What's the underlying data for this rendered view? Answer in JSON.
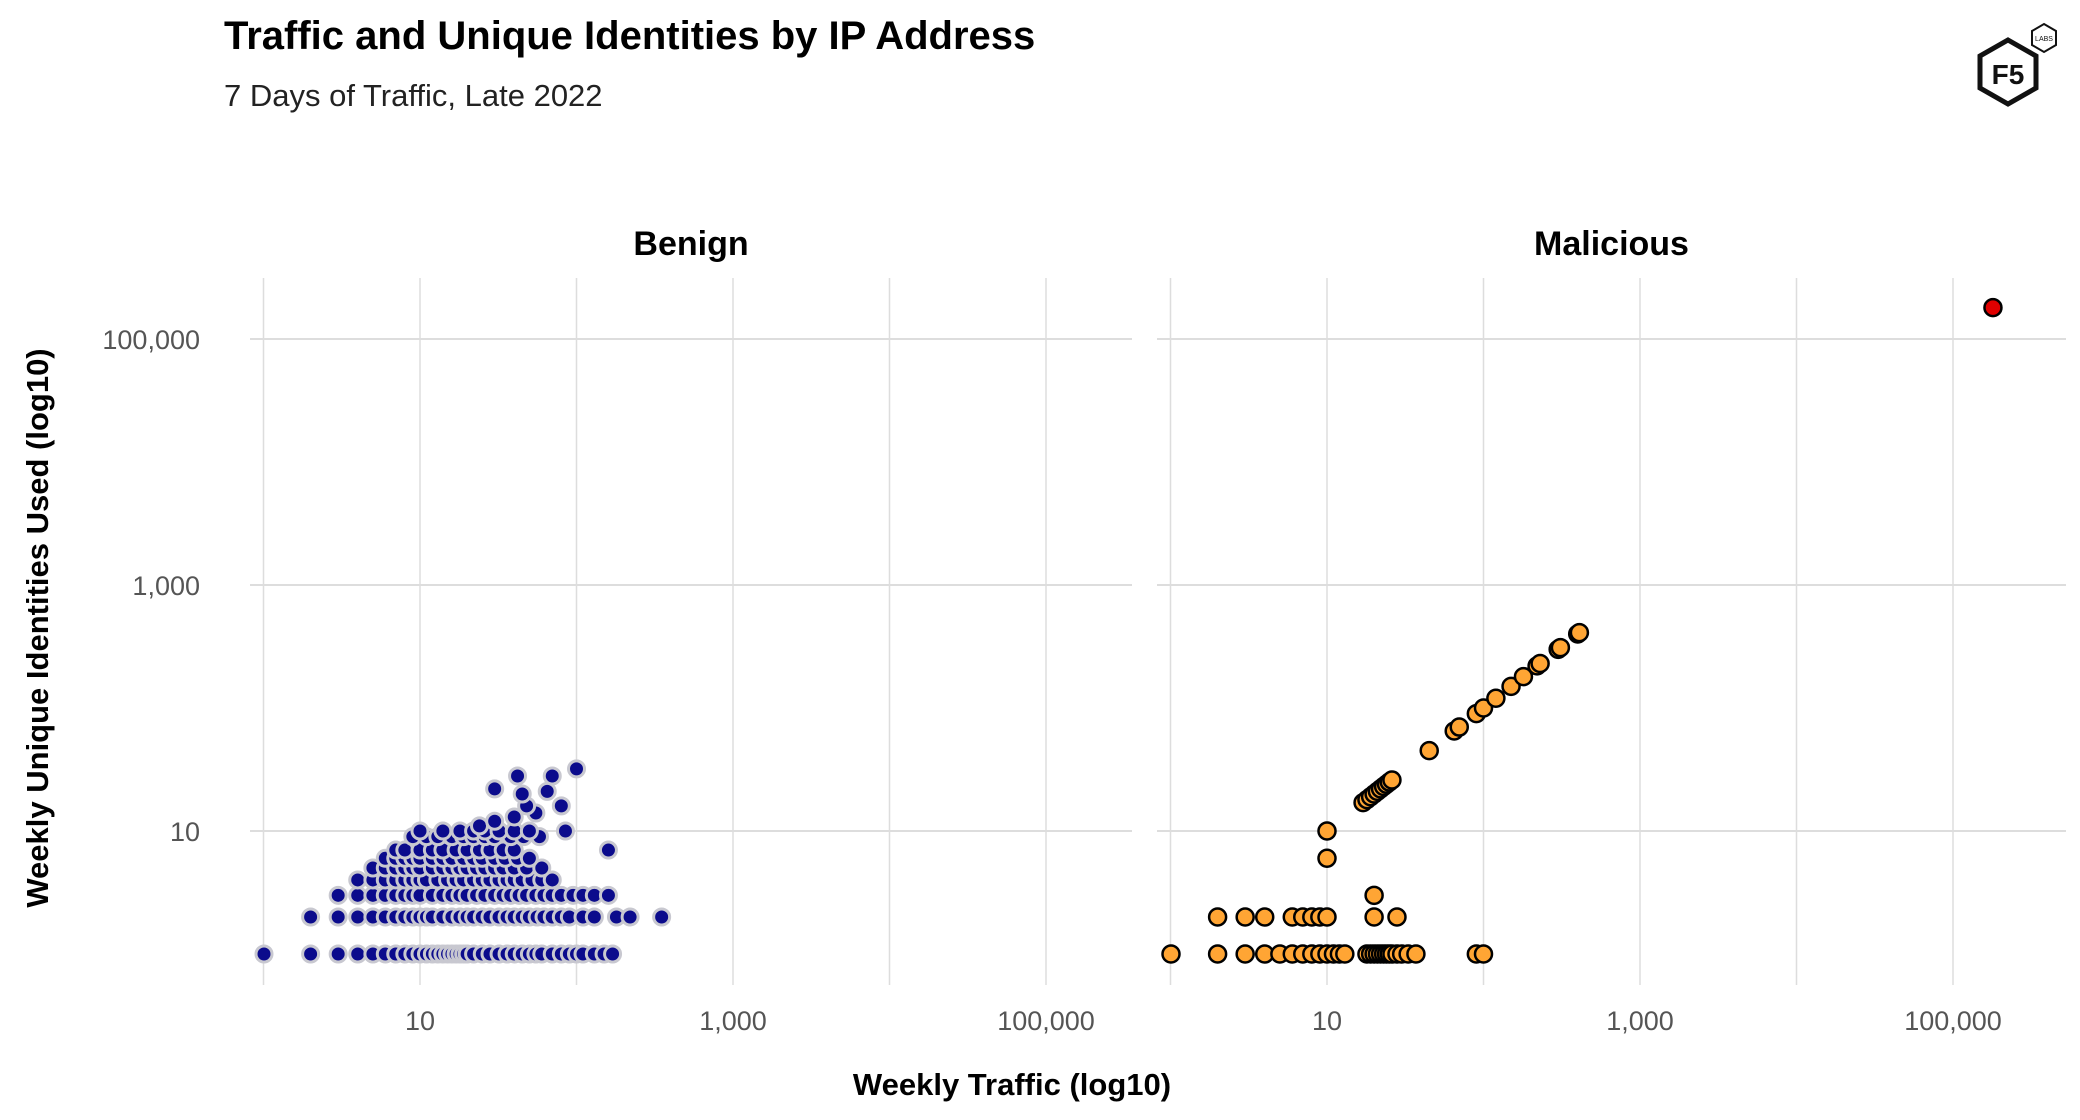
{
  "header": {
    "title": "Traffic and Unique Identities by IP Address",
    "subtitle": "7 Days of Traffic, Late 2022",
    "logo_text": "F5",
    "logo_badge": "LABS"
  },
  "colors": {
    "benign_fill": "#0b0b8c",
    "benign_stroke": "#c8c8d0",
    "malicious_fill": "#ffa534",
    "malicious_stroke": "#000000",
    "outlier_fill": "#e00000",
    "grid": "#dddddd"
  },
  "chart_data": {
    "type": "scatter",
    "xlabel": "Weekly Traffic (log10)",
    "ylabel": "Weekly Unique Identities Used (log10)",
    "x_scale": "log10",
    "y_scale": "log10",
    "xlim": [
      0.6,
      300000
    ],
    "ylim": [
      0.6,
      300000
    ],
    "x_ticks": [
      10,
      1000,
      100000
    ],
    "x_tick_labels": [
      "10",
      "1,000",
      "100,000"
    ],
    "y_ticks": [
      10,
      1000,
      100000
    ],
    "y_tick_labels": [
      "10",
      "1,000",
      "100,000"
    ],
    "grid": true,
    "panels": [
      {
        "name": "Benign",
        "points": [
          [
            1,
            1
          ],
          [
            2,
            1
          ],
          [
            3,
            1
          ],
          [
            4,
            1
          ],
          [
            5,
            1
          ],
          [
            6,
            1
          ],
          [
            7,
            1
          ],
          [
            8,
            1
          ],
          [
            9,
            1
          ],
          [
            10,
            1
          ],
          [
            11,
            1
          ],
          [
            12,
            1
          ],
          [
            13,
            1
          ],
          [
            14,
            1
          ],
          [
            15,
            1
          ],
          [
            16,
            1
          ],
          [
            17,
            1
          ],
          [
            18,
            1
          ],
          [
            19,
            1
          ],
          [
            20,
            1
          ],
          [
            22,
            1
          ],
          [
            25,
            1
          ],
          [
            28,
            1
          ],
          [
            32,
            1
          ],
          [
            36,
            1
          ],
          [
            40,
            1
          ],
          [
            45,
            1
          ],
          [
            50,
            1
          ],
          [
            55,
            1
          ],
          [
            60,
            1
          ],
          [
            70,
            1
          ],
          [
            80,
            1
          ],
          [
            90,
            1
          ],
          [
            100,
            1
          ],
          [
            110,
            1
          ],
          [
            130,
            1
          ],
          [
            150,
            1
          ],
          [
            170,
            1
          ],
          [
            2,
            2
          ],
          [
            3,
            2
          ],
          [
            4,
            2
          ],
          [
            5,
            2
          ],
          [
            6,
            2
          ],
          [
            7,
            2
          ],
          [
            8,
            2
          ],
          [
            9,
            2
          ],
          [
            10,
            2
          ],
          [
            11,
            2
          ],
          [
            12,
            2
          ],
          [
            14,
            2
          ],
          [
            16,
            2
          ],
          [
            18,
            2
          ],
          [
            20,
            2
          ],
          [
            22,
            2
          ],
          [
            25,
            2
          ],
          [
            28,
            2
          ],
          [
            32,
            2
          ],
          [
            36,
            2
          ],
          [
            40,
            2
          ],
          [
            45,
            2
          ],
          [
            50,
            2
          ],
          [
            56,
            2
          ],
          [
            62,
            2
          ],
          [
            70,
            2
          ],
          [
            80,
            2
          ],
          [
            90,
            2
          ],
          [
            110,
            2
          ],
          [
            130,
            2
          ],
          [
            180,
            2
          ],
          [
            220,
            2
          ],
          [
            350,
            2
          ],
          [
            3,
            3
          ],
          [
            4,
            3
          ],
          [
            5,
            3
          ],
          [
            6,
            3
          ],
          [
            7,
            3
          ],
          [
            8,
            3
          ],
          [
            9,
            3
          ],
          [
            10,
            3
          ],
          [
            12,
            3
          ],
          [
            14,
            3
          ],
          [
            16,
            3
          ],
          [
            18,
            3
          ],
          [
            20,
            3
          ],
          [
            23,
            3
          ],
          [
            26,
            3
          ],
          [
            30,
            3
          ],
          [
            34,
            3
          ],
          [
            38,
            3
          ],
          [
            43,
            3
          ],
          [
            48,
            3
          ],
          [
            55,
            3
          ],
          [
            62,
            3
          ],
          [
            70,
            3
          ],
          [
            80,
            3
          ],
          [
            95,
            3
          ],
          [
            110,
            3
          ],
          [
            130,
            3
          ],
          [
            160,
            3
          ],
          [
            4,
            4
          ],
          [
            5,
            4
          ],
          [
            6,
            4
          ],
          [
            7,
            4
          ],
          [
            8,
            4
          ],
          [
            9,
            4
          ],
          [
            10,
            4
          ],
          [
            11,
            4
          ],
          [
            13,
            4
          ],
          [
            15,
            4
          ],
          [
            17,
            4
          ],
          [
            19,
            4
          ],
          [
            22,
            4
          ],
          [
            25,
            4
          ],
          [
            28,
            4
          ],
          [
            32,
            4
          ],
          [
            36,
            4
          ],
          [
            40,
            4
          ],
          [
            45,
            4
          ],
          [
            52,
            4
          ],
          [
            60,
            4
          ],
          [
            70,
            4
          ],
          [
            5,
            5
          ],
          [
            6,
            5
          ],
          [
            7,
            5
          ],
          [
            8,
            5
          ],
          [
            9,
            5
          ],
          [
            10,
            5
          ],
          [
            12,
            5
          ],
          [
            14,
            5
          ],
          [
            16,
            5
          ],
          [
            18,
            5
          ],
          [
            20,
            5
          ],
          [
            23,
            5
          ],
          [
            26,
            5
          ],
          [
            30,
            5
          ],
          [
            34,
            5
          ],
          [
            40,
            5
          ],
          [
            48,
            5
          ],
          [
            60,
            5
          ],
          [
            6,
            6
          ],
          [
            7,
            6
          ],
          [
            8,
            6
          ],
          [
            9,
            6
          ],
          [
            10,
            6
          ],
          [
            12,
            6
          ],
          [
            14,
            6
          ],
          [
            16,
            6
          ],
          [
            19,
            6
          ],
          [
            22,
            6
          ],
          [
            25,
            6
          ],
          [
            30,
            6
          ],
          [
            35,
            6
          ],
          [
            42,
            6
          ],
          [
            50,
            6
          ],
          [
            7,
            7
          ],
          [
            8,
            7
          ],
          [
            10,
            7
          ],
          [
            12,
            7
          ],
          [
            14,
            7
          ],
          [
            17,
            7
          ],
          [
            20,
            7
          ],
          [
            24,
            7
          ],
          [
            28,
            7
          ],
          [
            34,
            7
          ],
          [
            40,
            7
          ],
          [
            160,
            7
          ],
          [
            9,
            9
          ],
          [
            11,
            9
          ],
          [
            13,
            9
          ],
          [
            16,
            9
          ],
          [
            19,
            9
          ],
          [
            22,
            9
          ],
          [
            26,
            9
          ],
          [
            30,
            9
          ],
          [
            38,
            9
          ],
          [
            46,
            9
          ],
          [
            58,
            9
          ],
          [
            10,
            10
          ],
          [
            14,
            10
          ],
          [
            18,
            10
          ],
          [
            22,
            10
          ],
          [
            26,
            10
          ],
          [
            32,
            10
          ],
          [
            40,
            10
          ],
          [
            50,
            10
          ],
          [
            85,
            10
          ],
          [
            24,
            11
          ],
          [
            30,
            12
          ],
          [
            40,
            13
          ],
          [
            55,
            14
          ],
          [
            48,
            16
          ],
          [
            80,
            16
          ],
          [
            65,
            21
          ],
          [
            45,
            20
          ],
          [
            42,
            28
          ],
          [
            30,
            22
          ],
          [
            70,
            28
          ],
          [
            100,
            32
          ]
        ]
      },
      {
        "name": "Malicious",
        "points": [
          [
            1,
            1
          ],
          [
            2,
            1
          ],
          [
            3,
            1
          ],
          [
            4,
            1
          ],
          [
            5,
            1
          ],
          [
            6,
            1
          ],
          [
            7,
            1
          ],
          [
            8,
            1
          ],
          [
            9,
            1
          ],
          [
            10,
            1
          ],
          [
            11,
            1
          ],
          [
            12,
            1
          ],
          [
            13,
            1
          ],
          [
            18,
            1
          ],
          [
            19,
            1
          ],
          [
            20,
            1
          ],
          [
            21,
            1
          ],
          [
            22,
            1
          ],
          [
            23,
            1
          ],
          [
            24,
            1
          ],
          [
            25,
            1
          ],
          [
            26,
            1
          ],
          [
            28,
            1
          ],
          [
            30,
            1
          ],
          [
            33,
            1
          ],
          [
            37,
            1
          ],
          [
            90,
            1
          ],
          [
            100,
            1
          ],
          [
            2,
            2
          ],
          [
            3,
            2
          ],
          [
            4,
            2
          ],
          [
            6,
            2
          ],
          [
            7,
            2
          ],
          [
            8,
            2
          ],
          [
            9,
            2
          ],
          [
            10,
            2
          ],
          [
            20,
            2
          ],
          [
            28,
            2
          ],
          [
            20,
            3
          ],
          [
            10,
            6
          ],
          [
            10,
            10
          ],
          [
            17,
            17
          ],
          [
            18,
            18
          ],
          [
            19,
            19
          ],
          [
            20,
            20
          ],
          [
            21,
            21
          ],
          [
            22,
            22
          ],
          [
            23,
            23
          ],
          [
            24,
            24
          ],
          [
            25,
            25
          ],
          [
            26,
            26
          ],
          [
            45,
            45
          ],
          [
            65,
            65
          ],
          [
            70,
            70
          ],
          [
            90,
            90
          ],
          [
            100,
            100
          ],
          [
            120,
            120
          ],
          [
            150,
            150
          ],
          [
            180,
            180
          ],
          [
            220,
            220
          ],
          [
            230,
            230
          ],
          [
            300,
            300
          ],
          [
            310,
            310
          ],
          [
            400,
            400
          ],
          [
            410,
            410
          ]
        ],
        "outlier": [
          180000,
          180000
        ]
      }
    ]
  }
}
